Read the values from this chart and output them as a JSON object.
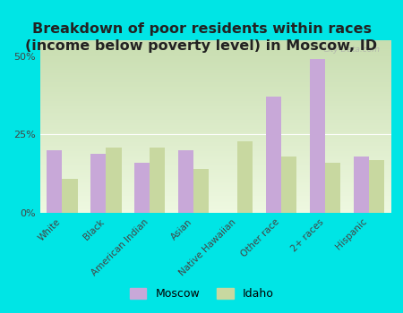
{
  "title": "Breakdown of poor residents within races\n(income below poverty level) in Moscow, ID",
  "categories": [
    "White",
    "Black",
    "American Indian",
    "Asian",
    "Native Hawaiian",
    "Other race",
    "2+ races",
    "Hispanic"
  ],
  "moscow_values": [
    20,
    19,
    16,
    20,
    0,
    37,
    49,
    18
  ],
  "idaho_values": [
    11,
    21,
    21,
    14,
    23,
    18,
    16,
    17
  ],
  "moscow_color": "#c8a8d8",
  "idaho_color": "#c8d8a0",
  "background_color": "#00e5e5",
  "grad_color_top": "#c8ddb0",
  "grad_color_bottom": "#eef8e0",
  "ylabel_ticks": [
    0,
    25,
    50
  ],
  "ylabel_labels": [
    "0%",
    "25%",
    "50%"
  ],
  "ylim": [
    0,
    55
  ],
  "bar_width": 0.35,
  "title_fontsize": 11.5,
  "tick_fontsize": 7.5,
  "legend_fontsize": 9,
  "watermark": "City-Data.com"
}
